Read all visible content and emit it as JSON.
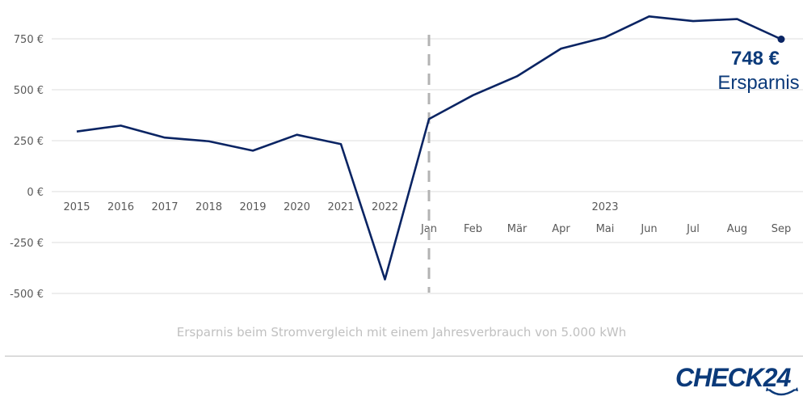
{
  "chart_data": {
    "type": "line",
    "categories": [
      "2015",
      "2016",
      "2017",
      "2018",
      "2019",
      "2020",
      "2021",
      "2022",
      "Jan",
      "Feb",
      "Mär",
      "Apr",
      "Mai",
      "Jun",
      "Jul",
      "Aug",
      "Sep"
    ],
    "category_groups": {
      "2023": [
        "Jan",
        "Feb",
        "Mär",
        "Apr",
        "Mai",
        "Jun",
        "Jul",
        "Aug",
        "Sep"
      ]
    },
    "group_label": "2023",
    "series": [
      {
        "values": [
          295,
          324,
          265,
          247,
          201,
          279,
          233,
          -431,
          356,
          473,
          566,
          702,
          757,
          860,
          837,
          847,
          748
        ]
      }
    ],
    "yticks": [
      750,
      500,
      250,
      0,
      -250,
      -500
    ],
    "ytick_labels": [
      "750 €",
      "500 €",
      "250 €",
      "0 €",
      "-250 €",
      "-500 €"
    ],
    "ylim": [
      -500,
      860
    ],
    "grid": true,
    "divider_before": "Jan",
    "annotation": {
      "value": "748 €",
      "label": "Ersparnis"
    },
    "line_color": "#0a2463",
    "annotation_color": "#0b3a7a",
    "caption": "Ersparnis beim Stromvergleich mit einem Jahresverbrauch von 5.000 kWh"
  },
  "logo": {
    "text": "CHECK24",
    "color": "#0b3a7a"
  }
}
